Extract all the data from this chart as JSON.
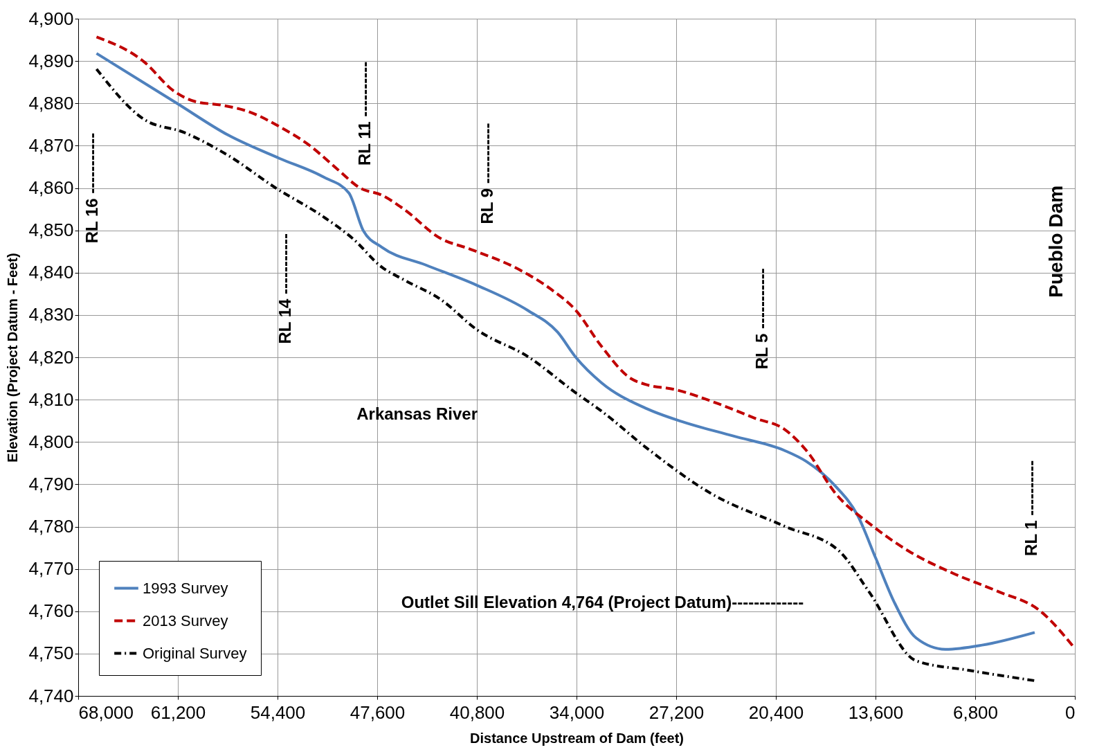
{
  "chart_data": {
    "type": "line",
    "xlabel": "Distance Upstream of Dam (feet)",
    "ylabel": "Elevation (Project Datum - Feet)",
    "xlim": [
      68000,
      0
    ],
    "xticks": [
      {
        "value": 68000,
        "label": "68,000"
      },
      {
        "value": 61200,
        "label": "61,200"
      },
      {
        "value": 54400,
        "label": "54,400"
      },
      {
        "value": 47600,
        "label": "47,600"
      },
      {
        "value": 40800,
        "label": "40,800"
      },
      {
        "value": 34000,
        "label": "34,000"
      },
      {
        "value": 27200,
        "label": "27,200"
      },
      {
        "value": 20400,
        "label": "20,400"
      },
      {
        "value": 13600,
        "label": "13,600"
      },
      {
        "value": 6800,
        "label": "6,800"
      },
      0
    ],
    "ylim": [
      4740,
      4900
    ],
    "yticks": [
      {
        "value": 4740,
        "label": "4,740"
      },
      {
        "value": 4750,
        "label": "4,750"
      },
      {
        "value": 4760,
        "label": "4,760"
      },
      {
        "value": 4770,
        "label": "4,770"
      },
      {
        "value": 4780,
        "label": "4,780"
      },
      {
        "value": 4790,
        "label": "4,790"
      },
      {
        "value": 4800,
        "label": "4,800"
      },
      {
        "value": 4810,
        "label": "4,810"
      },
      {
        "value": 4820,
        "label": "4,820"
      },
      {
        "value": 4830,
        "label": "4,830"
      },
      {
        "value": 4840,
        "label": "4,840"
      },
      {
        "value": 4850,
        "label": "4,850"
      },
      {
        "value": 4860,
        "label": "4,860"
      },
      {
        "value": 4870,
        "label": "4,870"
      },
      {
        "value": 4880,
        "label": "4,880"
      },
      {
        "value": 4890,
        "label": "4,890"
      },
      {
        "value": 4900,
        "label": "4,900"
      }
    ],
    "grid": true,
    "legend": "bottom left",
    "marker": "none",
    "series": [
      {
        "name": "1993 Survey",
        "color": "#4f81bd",
        "line_style": "solid",
        "x": [
          66750,
          61260,
          57770,
          54270,
          51270,
          49530,
          48530,
          47280,
          44280,
          40790,
          37290,
          35300,
          34050,
          32300,
          29300,
          26800,
          23300,
          19820,
          18320,
          16320,
          14830,
          13580,
          12330,
          10830,
          8830,
          6330,
          2740
        ],
        "values": [
          4891.8,
          4880,
          4872.5,
          4867,
          4862.6,
          4858.8,
          4849.8,
          4846,
          4841.8,
          4837,
          4831,
          4826,
          4820,
          4814,
          4808,
          4804.8,
          4801.4,
          4798,
          4795.4,
          4789.5,
          4782.7,
          4772.5,
          4762.2,
          4753.7,
          4751,
          4752,
          4755
        ]
      },
      {
        "name": "2013 Survey",
        "color": "#c00000",
        "line_style": "dashed",
        "x": [
          66750,
          63500,
          61510,
          60000,
          58260,
          56260,
          54270,
          52270,
          50270,
          48770,
          47280,
          45780,
          43280,
          41290,
          37790,
          35790,
          34050,
          32300,
          30300,
          29300,
          27310,
          24310,
          21820,
          19820,
          18320,
          16320,
          13820,
          11330,
          8330,
          5330,
          2340,
          0
        ],
        "values": [
          4895.7,
          4889.8,
          4883,
          4880.4,
          4879.6,
          4877.9,
          4874.5,
          4870.2,
          4864.3,
          4860,
          4858.3,
          4855,
          4848.1,
          4845.6,
          4840.5,
          4836.2,
          4831.1,
          4822.6,
          4815,
          4813.6,
          4812.4,
          4809,
          4805.6,
          4803,
          4798,
          4787.8,
          4780.2,
          4774.2,
          4769,
          4764.8,
          4760,
          4751.2
        ]
      },
      {
        "name": "Original Survey",
        "color": "#000000",
        "line_style": "dashdot",
        "x": [
          66750,
          63500,
          60760,
          57770,
          54520,
          51270,
          49280,
          47280,
          45780,
          43280,
          40790,
          37290,
          34050,
          32300,
          29300,
          24810,
          19820,
          16070,
          14080,
          10830,
          7330,
          2740
        ],
        "values": [
          4888.1,
          4876.2,
          4873.1,
          4867.7,
          4860,
          4853.2,
          4848.1,
          4841.3,
          4838.3,
          4833.7,
          4826.5,
          4820.1,
          4811.6,
          4807.3,
          4798.8,
          4787.8,
          4780.1,
          4774.2,
          4764.8,
          4748.3,
          4746.1,
          4743.6
        ]
      }
    ],
    "annotations": [
      "RL 16 -----------",
      "RL 14 -----------",
      "RL 11 ----------",
      "RL 9 -----------",
      "RL 5 -----------",
      "RL 1 ----------",
      "Pueblo Dam",
      "Arkansas River",
      "Outlet Sill Elevation 4,764 (Project Datum)-------------"
    ]
  }
}
